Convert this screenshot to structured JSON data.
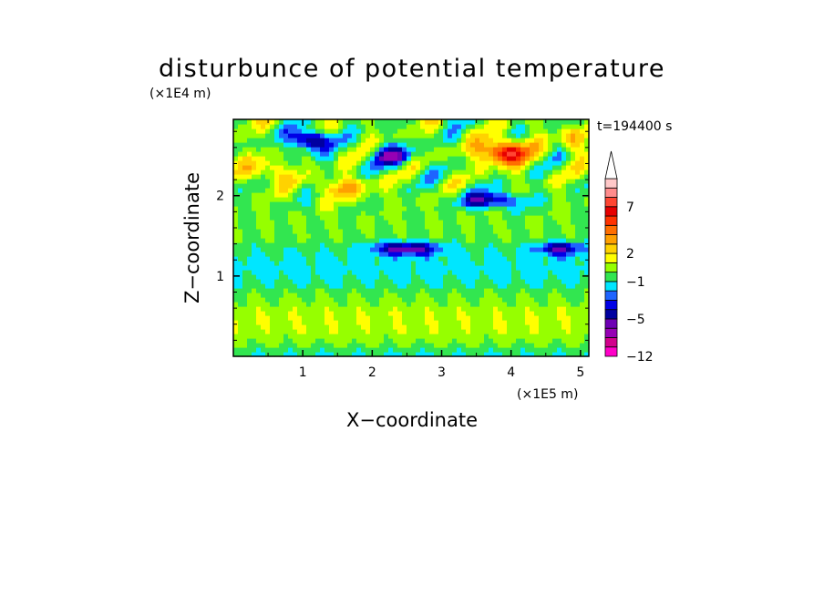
{
  "chart_data": {
    "type": "heatmap",
    "title": "disturbunce of potential temperature",
    "time_label": "t=194400 s",
    "xlabel": "X−coordinate",
    "ylabel": "Z−coordinate",
    "x_scale_label": "(×1E5 m)",
    "y_scale_label": "(×1E4 m)",
    "xlim": [
      0,
      5.12
    ],
    "ylim": [
      0,
      2.95
    ],
    "x_ticks": [
      {
        "value": 1,
        "label": "1"
      },
      {
        "value": 2,
        "label": "2"
      },
      {
        "value": 3,
        "label": "3"
      },
      {
        "value": 4,
        "label": "4"
      },
      {
        "value": 5,
        "label": "5"
      }
    ],
    "y_ticks": [
      {
        "value": 1,
        "label": "1"
      },
      {
        "value": 2,
        "label": "2"
      }
    ],
    "colorbar": {
      "levels": [
        -12,
        -10,
        -8,
        -6,
        -5,
        -4,
        -3,
        -2,
        -1,
        0,
        1,
        2,
        3,
        4,
        5,
        6,
        7,
        8,
        9,
        10
      ],
      "colors": [
        "#ff00c8",
        "#d2008c",
        "#9600b4",
        "#6e00b4",
        "#0000a0",
        "#0000e6",
        "#1e64ff",
        "#00e6ff",
        "#32e650",
        "#96ff00",
        "#ffff00",
        "#ffd200",
        "#ffa000",
        "#ff6e00",
        "#ff3200",
        "#e60000",
        "#ff4632",
        "#ff8c8c",
        "#ffc8c8"
      ],
      "extend": "max",
      "labeled_levels": [
        {
          "value": -12,
          "label": "−12"
        },
        {
          "value": -5,
          "label": "−5"
        },
        {
          "value": -1,
          "label": "−1"
        },
        {
          "value": 2,
          "label": "2"
        },
        {
          "value": 7,
          "label": "7"
        }
      ]
    },
    "features": [
      {
        "type": "band",
        "z": 0.45,
        "xr": [
          0,
          5.12
        ],
        "amp": 0.8
      },
      {
        "type": "band",
        "z": 1.1,
        "xr": [
          0,
          5.12
        ],
        "amp": -1.5
      },
      {
        "type": "blob",
        "x": 3.9,
        "z": 2.55,
        "sx": 0.35,
        "sz": 0.15,
        "amp": 7.5
      },
      {
        "type": "blob",
        "x": 1.1,
        "z": 2.7,
        "sx": 0.25,
        "sz": 0.12,
        "amp": -7.0
      },
      {
        "type": "blob",
        "x": 2.3,
        "z": 2.5,
        "sx": 0.3,
        "sz": 0.12,
        "amp": -5.0
      },
      {
        "type": "blob",
        "x": 3.7,
        "z": 1.95,
        "sx": 0.45,
        "sz": 0.1,
        "amp": -5.0
      },
      {
        "type": "blob",
        "x": 2.5,
        "z": 1.35,
        "sx": 0.5,
        "sz": 0.08,
        "amp": -5.0
      },
      {
        "type": "blob",
        "x": 4.7,
        "z": 1.35,
        "sx": 0.35,
        "sz": 0.08,
        "amp": -4.5
      },
      {
        "type": "blob",
        "x": 0.5,
        "z": 2.3,
        "sx": 0.3,
        "sz": 0.15,
        "amp": 3.0
      },
      {
        "type": "blob",
        "x": 1.6,
        "z": 2.1,
        "sx": 0.4,
        "sz": 0.12,
        "amp": 3.0
      },
      {
        "type": "blob",
        "x": 4.9,
        "z": 2.7,
        "sx": 0.2,
        "sz": 0.15,
        "amp": 3.0
      }
    ]
  }
}
